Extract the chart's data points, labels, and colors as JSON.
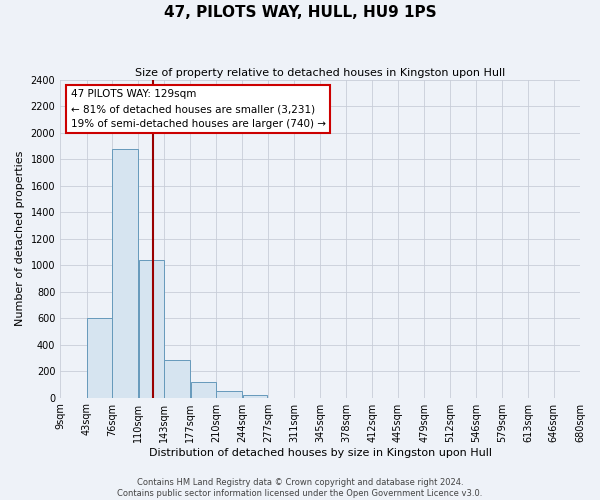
{
  "title": "47, PILOTS WAY, HULL, HU9 1PS",
  "subtitle": "Size of property relative to detached houses in Kingston upon Hull",
  "xlabel": "Distribution of detached houses by size in Kingston upon Hull",
  "ylabel": "Number of detached properties",
  "bar_left_edges": [
    9,
    43,
    76,
    110,
    143,
    177,
    210,
    244,
    277,
    311,
    345,
    378,
    412,
    445,
    479,
    512,
    546,
    579,
    613,
    646
  ],
  "bar_widths": [
    34,
    33,
    34,
    33,
    34,
    33,
    34,
    33,
    34,
    34,
    33,
    34,
    33,
    34,
    33,
    34,
    33,
    34,
    33,
    34
  ],
  "bar_heights": [
    0,
    600,
    1880,
    1035,
    280,
    115,
    50,
    20,
    0,
    0,
    0,
    0,
    0,
    0,
    0,
    0,
    0,
    0,
    0,
    0
  ],
  "bar_color": "#d6e4f0",
  "bar_edge_color": "#6699bb",
  "ylim": [
    0,
    2400
  ],
  "yticks": [
    0,
    200,
    400,
    600,
    800,
    1000,
    1200,
    1400,
    1600,
    1800,
    2000,
    2200,
    2400
  ],
  "xtick_labels": [
    "9sqm",
    "43sqm",
    "76sqm",
    "110sqm",
    "143sqm",
    "177sqm",
    "210sqm",
    "244sqm",
    "277sqm",
    "311sqm",
    "345sqm",
    "378sqm",
    "412sqm",
    "445sqm",
    "479sqm",
    "512sqm",
    "546sqm",
    "579sqm",
    "613sqm",
    "646sqm",
    "680sqm"
  ],
  "property_size": 129,
  "property_line_color": "#990000",
  "annotation_line1": "47 PILOTS WAY: 129sqm",
  "annotation_line2": "← 81% of detached houses are smaller (3,231)",
  "annotation_line3": "19% of semi-detached houses are larger (740) →",
  "annotation_box_facecolor": "#ffffff",
  "annotation_box_edgecolor": "#cc0000",
  "footer_line1": "Contains HM Land Registry data © Crown copyright and database right 2024.",
  "footer_line2": "Contains public sector information licensed under the Open Government Licence v3.0.",
  "background_color": "#eef2f8",
  "plot_bg_color": "#eef2f8",
  "grid_color": "#c8cdd8",
  "title_fontsize": 11,
  "subtitle_fontsize": 8,
  "ylabel_fontsize": 8,
  "xlabel_fontsize": 8,
  "tick_fontsize": 7,
  "footer_fontsize": 6
}
